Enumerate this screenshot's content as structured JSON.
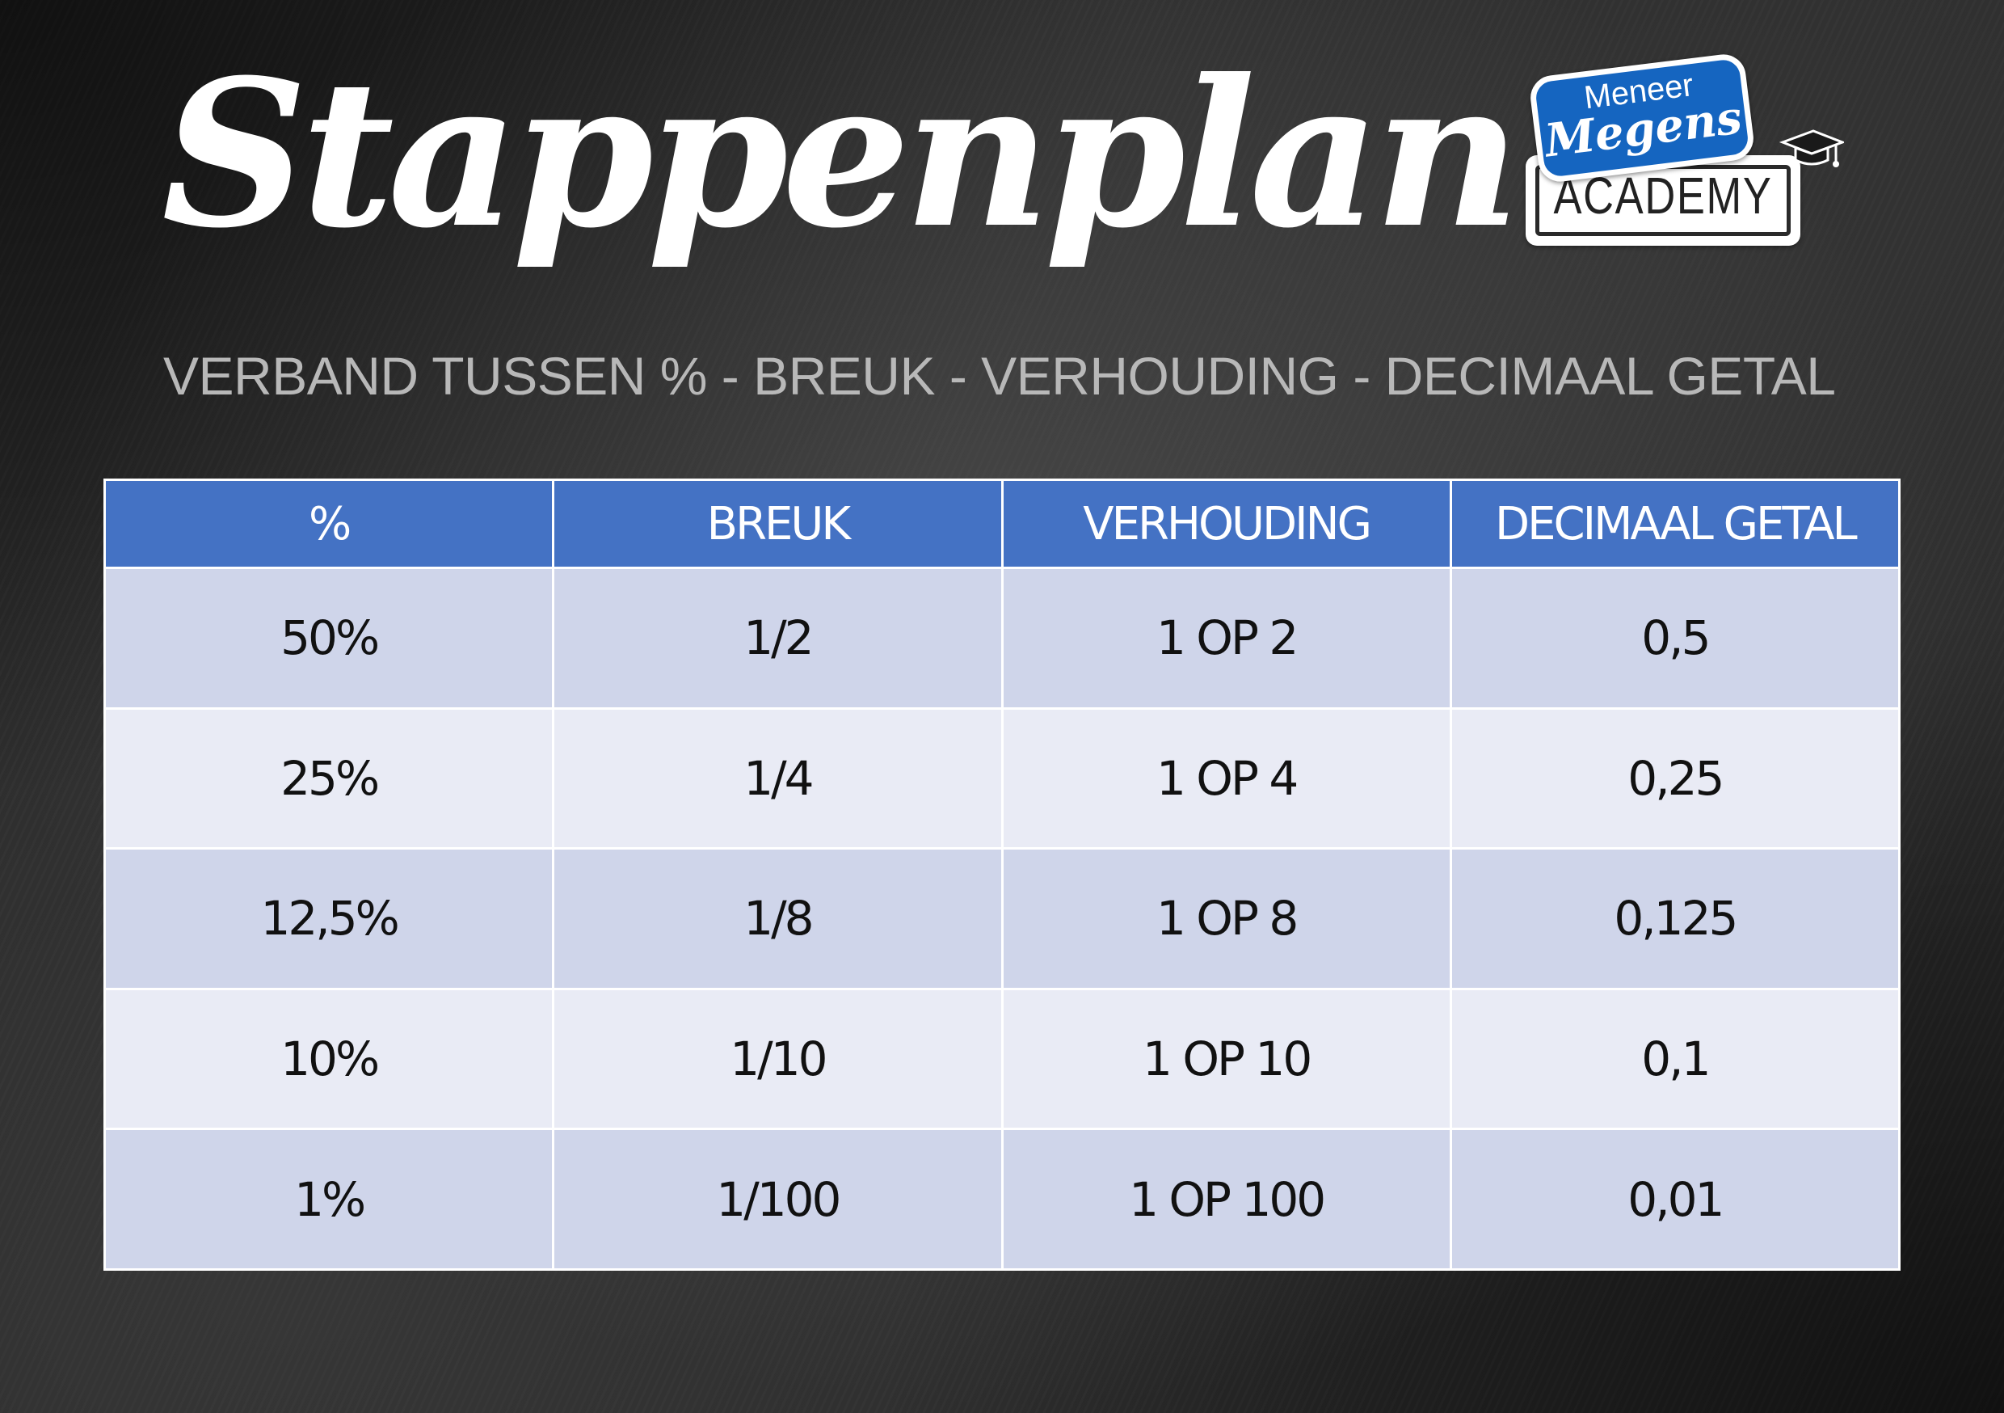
{
  "header": {
    "title": "Stappenplan",
    "subtitle": "VERBAND TUSSEN % - BREUK - VERHOUDING - DECIMAAL GETAL"
  },
  "logo": {
    "line1": "Meneer",
    "line2": "Megens",
    "line3": "ACADEMY",
    "icon": "graduation-cap-icon",
    "brand_color": "#1565c0"
  },
  "table": {
    "header_color": "#4472c4",
    "row_color_odd": "#cfd5ea",
    "row_color_even": "#e9ebf5",
    "columns": [
      "%",
      "BREUK",
      "VERHOUDING",
      "DECIMAAL GETAL"
    ],
    "rows": [
      [
        "50%",
        "1/2",
        "1 OP 2",
        "0,5"
      ],
      [
        "25%",
        "1/4",
        "1 OP 4",
        "0,25"
      ],
      [
        "12,5%",
        "1/8",
        "1 OP 8",
        "0,125"
      ],
      [
        "10%",
        "1/10",
        "1 OP 10",
        "0,1"
      ],
      [
        "1%",
        "1/100",
        "1 OP 100",
        "0,01"
      ]
    ]
  }
}
